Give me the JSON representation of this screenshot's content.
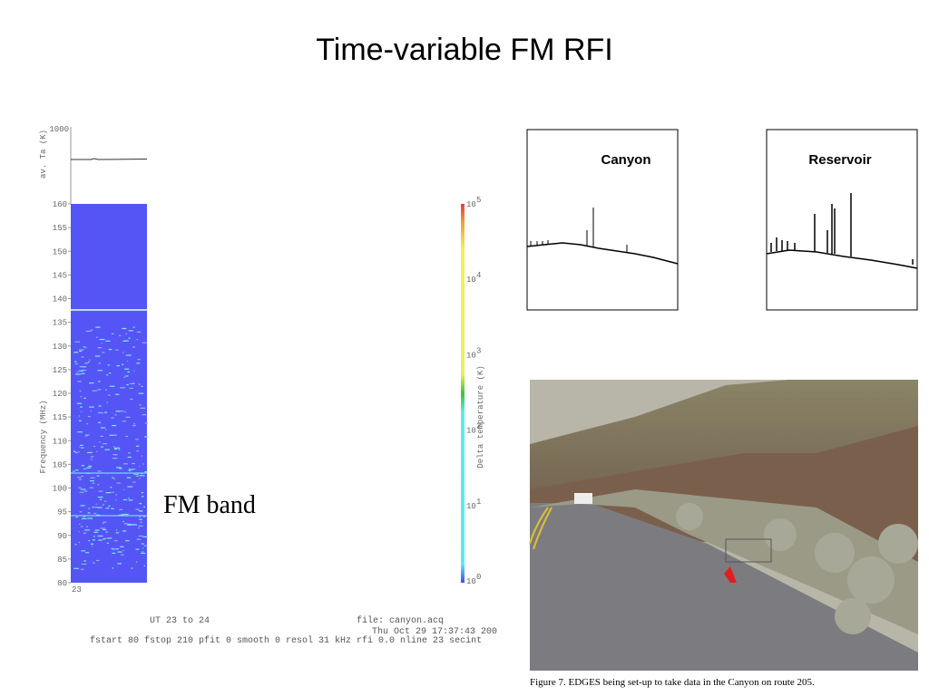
{
  "title": "Time-variable FM RFI",
  "waterfall": {
    "top_axis_label": "av. Ta (K)",
    "top_tick": "1000",
    "y_axis_label": "Frequency (MHz)",
    "yticks": [
      "160",
      "155",
      "150",
      "145",
      "140",
      "135",
      "130",
      "125",
      "120",
      "115",
      "110",
      "105",
      "100",
      "95",
      "90",
      "85",
      "80"
    ],
    "x_tick": "23",
    "colorbar": {
      "label": "Delta temperature (K)",
      "ticks": [
        {
          "base": "10",
          "exp": "5"
        },
        {
          "base": "10",
          "exp": "4"
        },
        {
          "base": "10",
          "exp": "3"
        },
        {
          "base": "10",
          "exp": "2"
        },
        {
          "base": "10",
          "exp": "1"
        },
        {
          "base": "10",
          "exp": "0"
        }
      ]
    },
    "footer": {
      "ut": "UT 23 to 24",
      "file": "file: canyon.acq",
      "date": "Thu Oct 29 17:37:43 200",
      "params": "fstart  80 fstop 210 pfit 0 smooth 0 resol  31 kHz rfi 0.0 nline 23 secint"
    }
  },
  "annotation": "FM band",
  "spectra": [
    {
      "title": "Canyon"
    },
    {
      "title": "Reservoir"
    }
  ],
  "photo": {
    "caption": "Figure 7. EDGES being set-up to take data in the Canyon on route 205."
  }
}
